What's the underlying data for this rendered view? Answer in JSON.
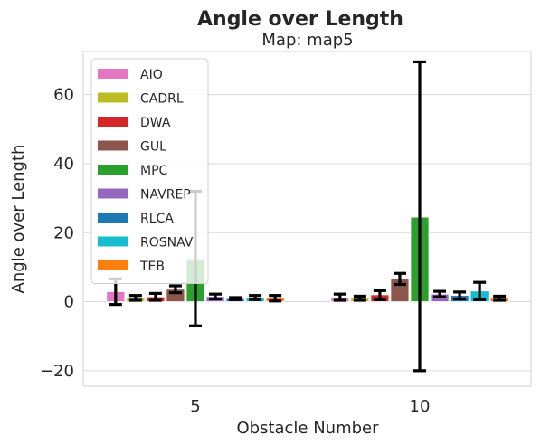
{
  "chart_data": {
    "type": "bar",
    "title": "Angle over Length",
    "subtitle": "Map: map5",
    "xlabel": "Obstacle Number",
    "ylabel": "Angle over Length",
    "categories": [
      "5",
      "10"
    ],
    "ylim": [
      -24.5,
      72.5
    ],
    "yticks": [
      -20,
      0,
      20,
      40,
      60
    ],
    "ytick_labels": [
      "−20",
      "0",
      "20",
      "40",
      "60"
    ],
    "grid": true,
    "legend_position": "upper-left",
    "series": [
      {
        "name": "AIO",
        "color": "#e377c2",
        "values": [
          2.9,
          1.3
        ],
        "errors": [
          [
            -0.8,
            6.6
          ],
          [
            0.4,
            2.2
          ]
        ]
      },
      {
        "name": "CADRL",
        "color": "#bcbd22",
        "values": [
          1.2,
          1.0
        ],
        "errors": [
          [
            0.4,
            1.8
          ],
          [
            0.4,
            1.6
          ]
        ]
      },
      {
        "name": "DWA",
        "color": "#d62728",
        "values": [
          1.4,
          2.0
        ],
        "errors": [
          [
            0.4,
            2.4
          ],
          [
            0.6,
            3.2
          ]
        ]
      },
      {
        "name": "GUL",
        "color": "#8c564b",
        "values": [
          3.6,
          6.7
        ],
        "errors": [
          [
            2.6,
            4.6
          ],
          [
            5.0,
            8.2
          ]
        ]
      },
      {
        "name": "MPC",
        "color": "#2ca02c",
        "values": [
          12.4,
          24.5
        ],
        "errors": [
          [
            -7.0,
            32.0
          ],
          [
            -20.0,
            69.5
          ]
        ]
      },
      {
        "name": "NAVREP",
        "color": "#9467bd",
        "values": [
          1.5,
          2.2
        ],
        "errors": [
          [
            0.8,
            2.2
          ],
          [
            1.4,
            3.0
          ]
        ]
      },
      {
        "name": "RLCA",
        "color": "#1f77b4",
        "values": [
          0.9,
          1.8
        ],
        "errors": [
          [
            0.6,
            1.2
          ],
          [
            0.8,
            2.8
          ]
        ]
      },
      {
        "name": "ROSNAV",
        "color": "#17becf",
        "values": [
          1.2,
          3.1
        ],
        "errors": [
          [
            0.6,
            1.8
          ],
          [
            0.6,
            5.6
          ]
        ]
      },
      {
        "name": "TEB",
        "color": "#ff7f0e",
        "values": [
          1.1,
          1.0
        ],
        "errors": [
          [
            0.2,
            1.8
          ],
          [
            0.4,
            1.6
          ]
        ]
      }
    ]
  }
}
